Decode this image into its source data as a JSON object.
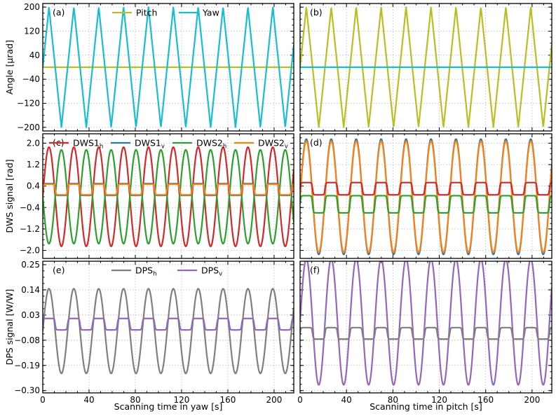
{
  "chart_data": {
    "type": "line",
    "colors": {
      "Pitch": "#bcbd22",
      "Yaw": "#17becf",
      "DWS1h": "#d62728",
      "DWS1v": "#1f77b4",
      "DWS2h": "#2ca02c",
      "DWS2v": "#ff7f0e",
      "DPSh": "#7f7f7f",
      "DPSv": "#9467bd"
    },
    "xlabel_left": "Scanning time in yaw [s]",
    "xlabel_right": "Scanning time in pitch [s]",
    "xlim": [
      0,
      217
    ],
    "x_ticks": [
      "0",
      "40",
      "80",
      "120",
      "160",
      "200"
    ],
    "period_s": 21.5,
    "rows": [
      {
        "ylabel": "Angle [μrad]",
        "ylim": [
          -212,
          212
        ],
        "y_ticks": [
          "200",
          "120",
          "40",
          "−40",
          "−120",
          "−200"
        ],
        "y_tick_values": [
          200,
          120,
          40,
          -40,
          -120,
          -200
        ],
        "legend": [
          "Pitch",
          "Yaw"
        ],
        "panels": [
          {
            "label": "(a)",
            "series": [
              {
                "name": "Pitch",
                "shape": "const",
                "offset": 0
              },
              {
                "name": "Yaw",
                "shape": "tri",
                "amp": 200,
                "offset": 0
              }
            ]
          },
          {
            "label": "(b)",
            "series": [
              {
                "name": "Pitch",
                "shape": "tri",
                "amp": 200,
                "offset": 0
              },
              {
                "name": "Yaw",
                "shape": "const",
                "offset": 0
              }
            ]
          }
        ]
      },
      {
        "ylabel": "DWS signal [rad]",
        "ylim": [
          -2.3,
          2.35
        ],
        "y_ticks": [
          "2.0",
          "1.2",
          "0.4",
          "−0.4",
          "−1.2",
          "−2.0"
        ],
        "y_tick_values": [
          2.0,
          1.2,
          0.4,
          -0.4,
          -1.2,
          -2.0
        ],
        "legend": [
          {
            "base": "DWS1",
            "sub": "h",
            "key": "DWS1h"
          },
          {
            "base": "DWS1",
            "sub": "v",
            "key": "DWS1v"
          },
          {
            "base": "DWS2",
            "sub": "h",
            "key": "DWS2h"
          },
          {
            "base": "DWS2",
            "sub": "v",
            "key": "DWS2v"
          }
        ],
        "panels": [
          {
            "label": "(c)",
            "series": [
              {
                "name": "DWS1h",
                "shape": "sin",
                "amp": 1.85,
                "offset": 0,
                "sign": 1
              },
              {
                "name": "DWS2h",
                "shape": "sin",
                "amp": 1.75,
                "offset": 0,
                "sign": -1
              },
              {
                "name": "DWS1v",
                "shape": "sq",
                "amp": 0.22,
                "offset": 0.27
              },
              {
                "name": "DWS2v",
                "shape": "sq",
                "amp": 0.2,
                "offset": 0.27
              }
            ]
          },
          {
            "label": "(d)",
            "series": [
              {
                "name": "DWS1v",
                "shape": "sin",
                "amp": 2.15,
                "offset": 0,
                "sign": 1
              },
              {
                "name": "DWS2v",
                "shape": "sin",
                "amp": 2.08,
                "offset": 0,
                "sign": 1
              },
              {
                "name": "DWS1h",
                "shape": "sq",
                "amp": 0.23,
                "offset": 0.3
              },
              {
                "name": "DWS2h",
                "shape": "sq",
                "amp": 0.32,
                "offset": -0.28
              }
            ]
          }
        ]
      },
      {
        "ylabel": "DPS signal [W/W]",
        "ylim": [
          -0.31,
          0.265
        ],
        "y_ticks": [
          "0.25",
          "0.14",
          "0.03",
          "−0.08",
          "−0.19",
          "−0.30"
        ],
        "y_tick_values": [
          0.25,
          0.14,
          0.03,
          -0.08,
          -0.19,
          -0.3
        ],
        "legend": [
          {
            "base": "DPS",
            "sub": "h",
            "key": "DPSh"
          },
          {
            "base": "DPS",
            "sub": "v",
            "key": "DPSv"
          }
        ],
        "panels": [
          {
            "label": "(e)",
            "series": [
              {
                "name": "DPSh",
                "shape": "sin",
                "amp": 0.185,
                "offset": -0.04,
                "sign": 1
              },
              {
                "name": "DPSv",
                "shape": "sq",
                "amp": 0.025,
                "offset": -0.01
              }
            ]
          },
          {
            "label": "(f)",
            "series": [
              {
                "name": "DPSv",
                "shape": "sin",
                "amp": 0.275,
                "offset": 0,
                "sign": 1
              },
              {
                "name": "DPSh",
                "shape": "sq",
                "amp": 0.025,
                "offset": -0.05
              }
            ]
          }
        ]
      }
    ]
  }
}
